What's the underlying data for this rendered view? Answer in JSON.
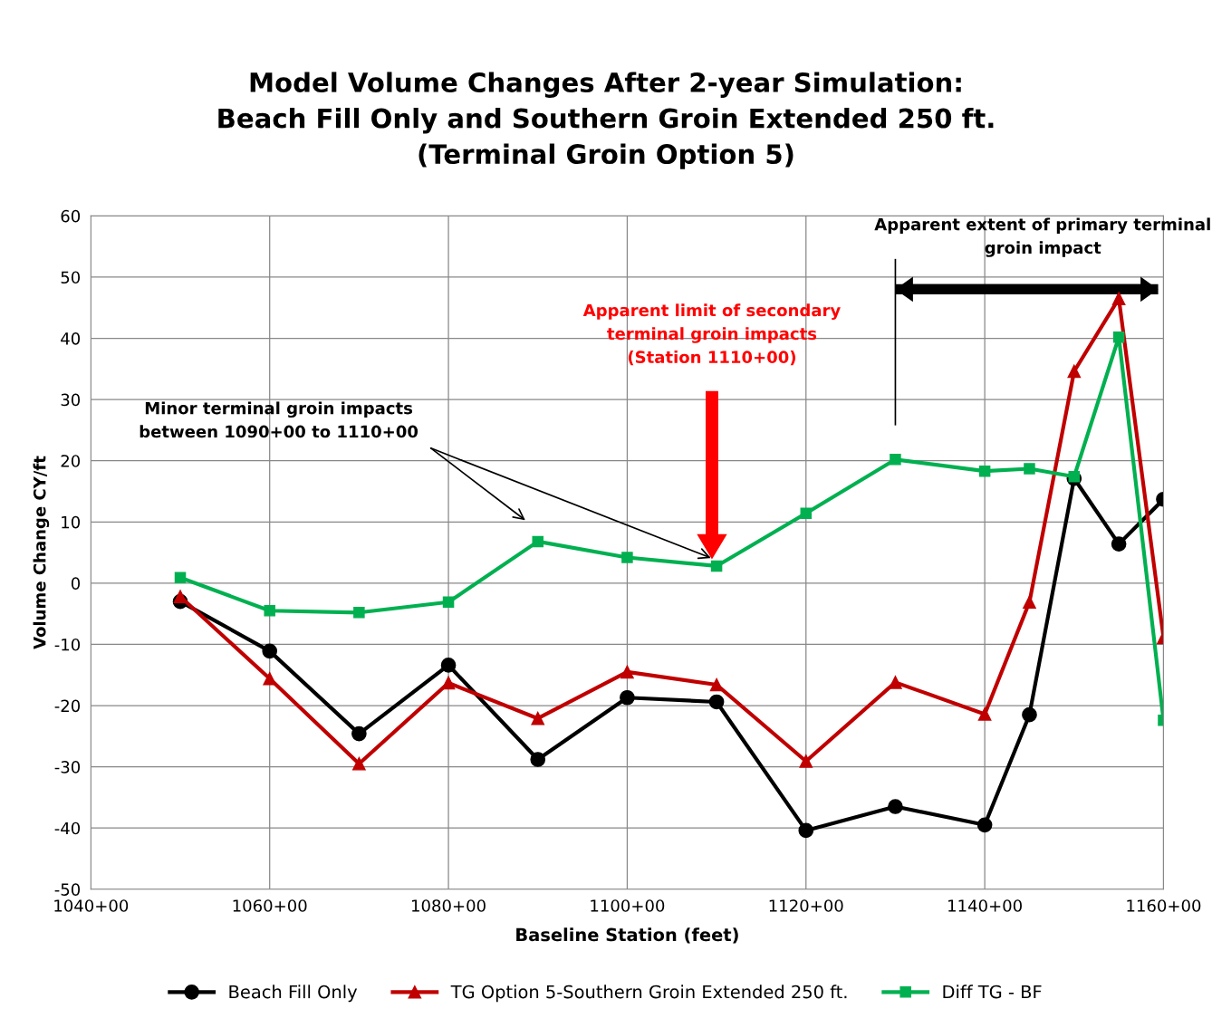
{
  "chart_data": {
    "type": "line",
    "title": "Model Volume Changes After 2-year Simulation:\nBeach Fill Only and Southern Groin Extended 250 ft.\n(Terminal Groin Option 5)",
    "xlabel": "Baseline Station (feet)",
    "ylabel": "Volume Change CY/ft",
    "categories": [
      "1040+00",
      null,
      null,
      null,
      "1060+00",
      null,
      null,
      null,
      "1080+00",
      null,
      null,
      null,
      "1100+00",
      null,
      null,
      null,
      "1120+00",
      null,
      null,
      null,
      "1140+00",
      null,
      null,
      null,
      "1160+00"
    ],
    "series": [
      {
        "name": "Beach Fill Only",
        "color": "#000000",
        "marker": "circle",
        "values": [
          null,
          null,
          -3,
          null,
          -11.1,
          null,
          -24.6,
          null,
          -13.4,
          null,
          -28.8,
          null,
          -18.7,
          null,
          -19.4,
          null,
          -40.4,
          null,
          -36.5,
          null,
          -39.5,
          -21.5,
          17.1,
          6.4,
          13.7
        ]
      },
      {
        "name": "TG Option 5-Southern Groin Extended 250 ft.",
        "color": "#c00000",
        "marker": "triangle",
        "values": [
          null,
          null,
          -2.2,
          null,
          -15.6,
          null,
          -29.5,
          null,
          -16.3,
          null,
          -22.1,
          null,
          -14.5,
          null,
          -16.6,
          null,
          -29.1,
          null,
          -16.2,
          null,
          -21.4,
          -3.1,
          34.6,
          46.5,
          -8.9
        ]
      },
      {
        "name": "Diff TG - BF",
        "color": "#00b050",
        "marker": "square",
        "values": [
          null,
          null,
          0.9,
          null,
          -4.5,
          null,
          -4.8,
          null,
          -3.1,
          null,
          6.8,
          null,
          4.2,
          null,
          2.8,
          null,
          11.4,
          null,
          20.2,
          null,
          18.3,
          18.7,
          17.4,
          40.2,
          -22.4
        ]
      }
    ],
    "ylim": [
      -50,
      60
    ],
    "yticks": [
      -50,
      -40,
      -30,
      -20,
      -10,
      0,
      10,
      20,
      30,
      40,
      50,
      60
    ],
    "grid": true,
    "legend": "bottom",
    "line_style": "solid",
    "annotations": [
      "Minor terminal groin impacts\nbetween 1090+00 to 1110+00",
      "Apparent limit of secondary\nterminal groin impacts\n(Station 1110+00)",
      "Apparent extent of primary terminal\ngroin impact"
    ]
  }
}
